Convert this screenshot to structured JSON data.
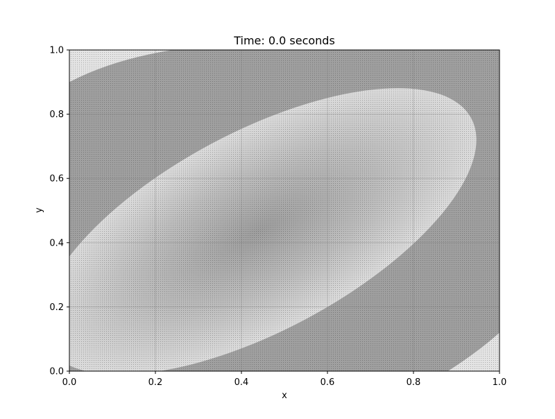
{
  "chart_data": {
    "type": "heatmap",
    "title": "Time: 0.0 seconds",
    "xlabel": "x",
    "ylabel": "y",
    "xlim": [
      0.0,
      1.0
    ],
    "ylim": [
      0.0,
      1.0
    ],
    "x_ticks": [
      "0.0",
      "0.2",
      "0.4",
      "0.6",
      "0.8",
      "1.0"
    ],
    "y_ticks": [
      "0.0",
      "0.2",
      "0.4",
      "0.6",
      "0.8",
      "1.0"
    ],
    "grid": true,
    "colormap": "gray",
    "colors": {
      "dark_band": "#a0a0a0",
      "mid_band": "#d8d8d8",
      "center": "#9e9e9e",
      "corner_light": "#e4e4e4"
    },
    "regions": [
      {
        "name": "light-band-ellipse",
        "center_x": 0.44,
        "center_y": 0.435,
        "radius_x": 0.56,
        "radius_y": 0.31,
        "rotation_deg": 28
      },
      {
        "name": "light-top-left-corner",
        "x": [
          0.0,
          0.0,
          0.12,
          0.24
        ],
        "y": [
          0.9,
          1.0,
          1.0,
          1.0
        ]
      },
      {
        "name": "light-bottom-right-corner",
        "x": [
          0.88,
          1.0,
          1.0
        ],
        "y": [
          0.0,
          0.0,
          0.12
        ]
      }
    ]
  }
}
